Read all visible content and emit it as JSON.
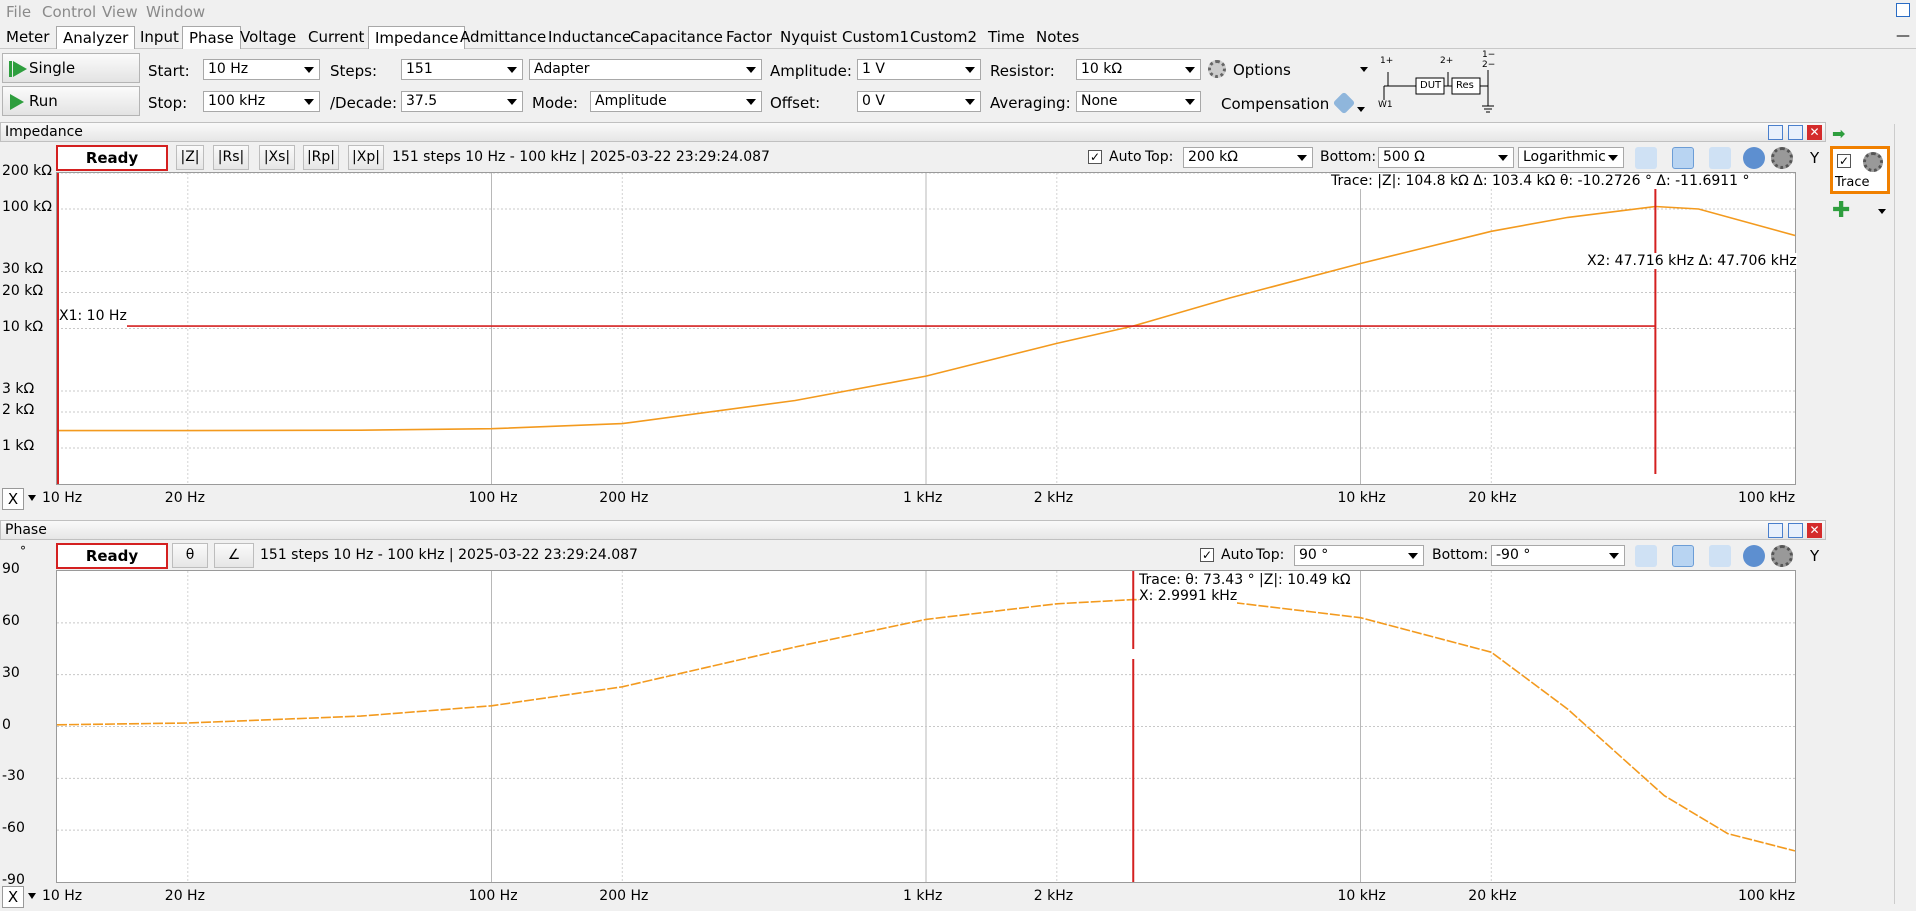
{
  "menu": [
    "File",
    "Control",
    "View",
    "Window"
  ],
  "tabs": [
    "Meter",
    "Analyzer",
    "Input",
    "Phase",
    "Voltage",
    "Current",
    "Impedance",
    "Admittance",
    "Inductance",
    "Capacitance",
    "Factor",
    "Nyquist",
    "Custom1",
    "Custom2",
    "Time",
    "Notes"
  ],
  "selected_tabs": [
    "Analyzer",
    "Phase",
    "Impedance"
  ],
  "controls": {
    "single": "Single",
    "run": "Run",
    "start_label": "Start:",
    "start": "10 Hz",
    "stop_label": "Stop:",
    "stop": "100 kHz",
    "steps_label": "Steps:",
    "steps": "151",
    "decade_label": "/Decade:",
    "decade": "37.5",
    "adapter": "Adapter",
    "mode_label": "Mode:",
    "mode": "Amplitude",
    "amplitude_label": "Amplitude:",
    "amplitude": "1 V",
    "offset_label": "Offset:",
    "offset": "0 V",
    "resistor_label": "Resistor:",
    "resistor": "10 kΩ",
    "averaging_label": "Averaging:",
    "averaging": "None",
    "options": "Options",
    "compensation": "Compensation",
    "diagram": {
      "p1": "1+",
      "p2": "2+",
      "m1": "1−",
      "m2": "2−",
      "dut": "DUT",
      "res": "Res",
      "w1": "W1"
    }
  },
  "impedance": {
    "title": "Impedance",
    "status": "Ready",
    "buttons": [
      "|Z|",
      "|Rs|",
      "|Xs|",
      "|Rp|",
      "|Xp|"
    ],
    "info": "151 steps 10 Hz - 100 kHz | 2025-03-22 23:29:24.087",
    "auto_label": "Auto",
    "top_label": "Top:",
    "top": "200 kΩ",
    "bottom_label": "Bottom:",
    "bottom": "500 Ω",
    "scale": "Logarithmic",
    "y_btn": "Y",
    "y_ticks": [
      "200 kΩ",
      "100 kΩ",
      "30 kΩ",
      "20 kΩ",
      "10 kΩ",
      "3 kΩ",
      "2 kΩ",
      "1 kΩ"
    ],
    "trace_readout": "Trace:   |Z|: 104.8 kΩ  Δ: 103.4 kΩ   θ: -10.2726 °    Δ: -11.6911 °",
    "x1_label": "X1: 10 Hz",
    "x2_label": "X2: 47.716 kHz    Δ: 47.706 kHz"
  },
  "phase": {
    "title": "Phase",
    "status": "Ready",
    "unit": "°",
    "buttons": [
      "θ",
      "∠"
    ],
    "info": "151 steps 10 Hz - 100 kHz | 2025-03-22 23:29:24.087",
    "auto_label": "Auto",
    "top_label": "Top:",
    "top": "90 °",
    "bottom_label": "Bottom:",
    "bottom": "-90 °",
    "y_btn": "Y",
    "y_ticks": [
      "90",
      "60",
      "30",
      "0",
      "-30",
      "-60",
      "-90"
    ],
    "trace_readout": "Trace:   θ: 73.43 °    |Z|: 10.49 kΩ",
    "x_readout": "X: 2.9991 kHz"
  },
  "x_axis": {
    "btn": "X",
    "ticks": [
      "10 Hz",
      "20 Hz",
      "100 Hz",
      "200 Hz",
      "1 kHz",
      "2 kHz",
      "10 kHz",
      "20 kHz",
      "100 kHz"
    ]
  },
  "side": {
    "label": "Trace"
  },
  "colors": {
    "trace": "#f39a1e",
    "cursor": "#d42020",
    "accent": "#f08000"
  },
  "chart_data": [
    {
      "type": "line",
      "x_scale": "log",
      "xlim": [
        10,
        100000
      ],
      "y_scale": "log",
      "ylim": [
        500,
        200000
      ],
      "series": [
        {
          "x": [
            10,
            20,
            50,
            100,
            200,
            500,
            1000,
            2000,
            3000,
            5000,
            10000,
            20000,
            30000,
            47716,
            60000,
            100000
          ],
          "y": [
            1400,
            1400,
            1410,
            1450,
            1600,
            2500,
            4000,
            7500,
            10490,
            18000,
            35000,
            65000,
            85000,
            104800,
            100000,
            60000
          ]
        }
      ],
      "cursors": {
        "x1": 10,
        "x2": 47716,
        "y1": 10490
      }
    },
    {
      "type": "line",
      "x_scale": "log",
      "xlim": [
        10,
        100000
      ],
      "ylim": [
        -90,
        90
      ],
      "series": [
        {
          "x": [
            10,
            20,
            50,
            100,
            200,
            500,
            1000,
            2000,
            2999,
            5000,
            10000,
            20000,
            30000,
            50000,
            70000,
            100000
          ],
          "y": [
            1,
            2,
            6,
            12,
            23,
            46,
            62,
            71,
            73.43,
            72,
            63,
            43,
            10,
            -40,
            -62,
            -72
          ]
        }
      ],
      "cursors": {
        "x": 2999
      }
    }
  ]
}
